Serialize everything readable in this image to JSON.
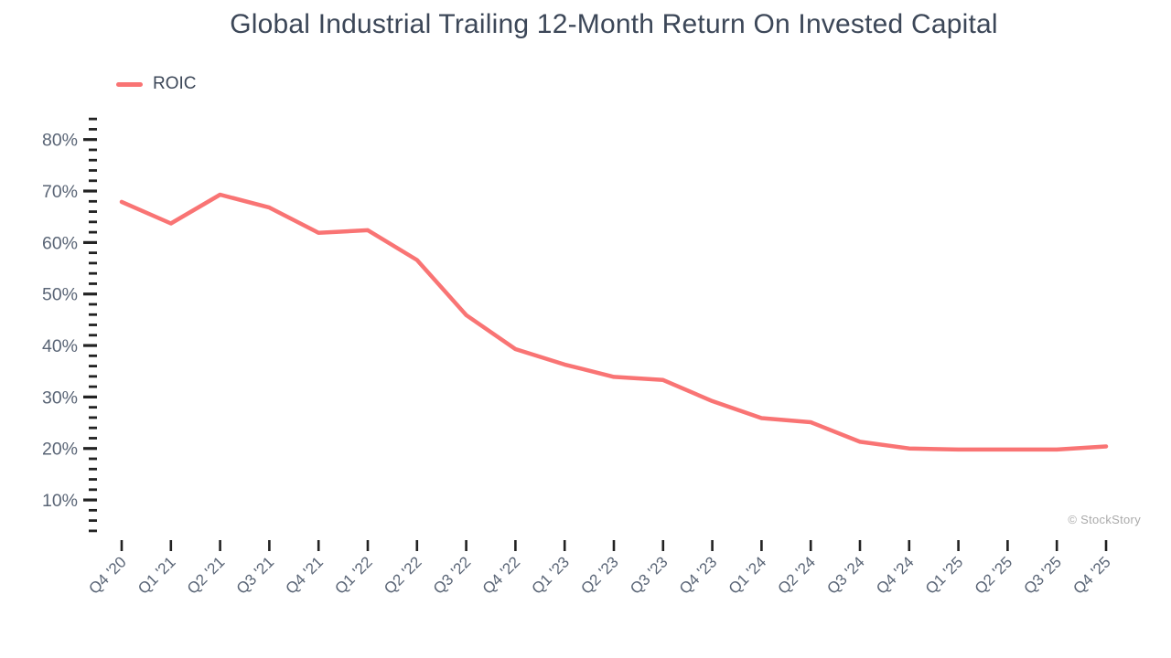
{
  "title": "Global Industrial Trailing 12-Month Return On Invested Capital",
  "legend": {
    "label": "ROIC"
  },
  "watermark": "© StockStory",
  "colors": {
    "line": "#f97474",
    "title_text": "#3c4758",
    "axis_label": "#5a6576",
    "tick": "#222222",
    "watermark": "#aaaaaa",
    "background": "#ffffff"
  },
  "chart_data": {
    "type": "line",
    "title": "Global Industrial Trailing 12-Month Return On Invested Capital",
    "xlabel": "",
    "ylabel": "",
    "grid": false,
    "legend_position": "top-left",
    "categories": [
      "Q4 '20",
      "Q1 '21",
      "Q2 '21",
      "Q3 '21",
      "Q4 '21",
      "Q1 '22",
      "Q2 '22",
      "Q3 '22",
      "Q4 '22",
      "Q1 '23",
      "Q2 '23",
      "Q3 '23",
      "Q4 '23",
      "Q1 '24",
      "Q2 '24",
      "Q3 '24",
      "Q4 '24",
      "Q1 '25",
      "Q2 '25",
      "Q3 '25",
      "Q4 '25"
    ],
    "series": [
      {
        "name": "ROIC",
        "color": "#f97474",
        "values": [
          67.9,
          63.7,
          69.3,
          66.8,
          61.9,
          62.4,
          56.6,
          45.9,
          39.3,
          36.3,
          33.9,
          33.3,
          29.2,
          25.9,
          25.1,
          21.3,
          20.0,
          19.8,
          19.8,
          19.8,
          20.4
        ]
      }
    ],
    "y_axis": {
      "unit": "%",
      "major_tick_labels": [
        "10%",
        "20%",
        "30%",
        "40%",
        "50%",
        "60%",
        "70%",
        "80%"
      ],
      "major_ticks": [
        10,
        20,
        30,
        40,
        50,
        60,
        70,
        80
      ],
      "minor_tick_step": 2,
      "ylim": [
        4,
        84
      ]
    }
  }
}
